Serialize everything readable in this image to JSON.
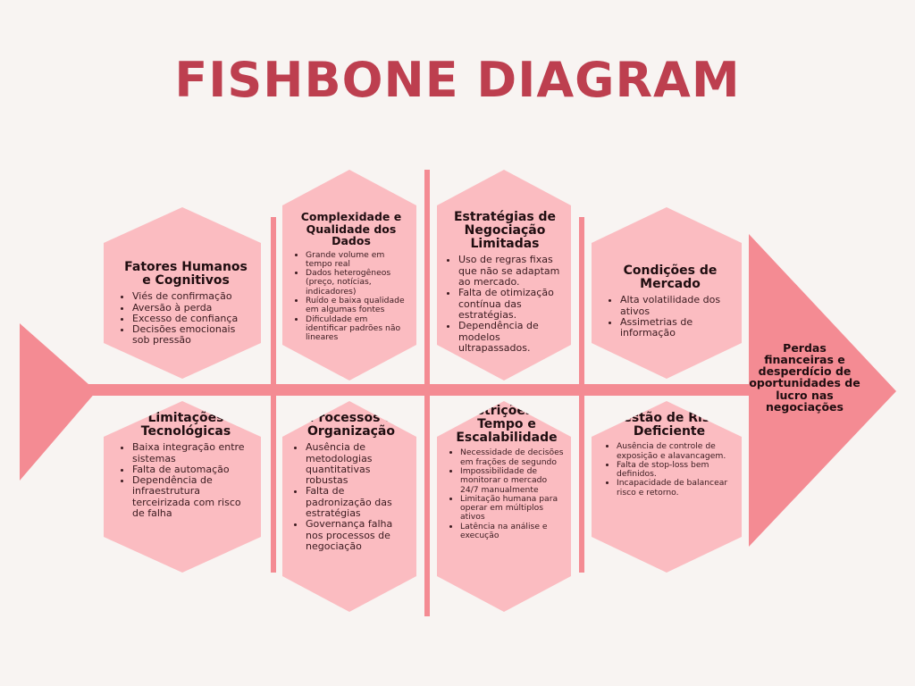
{
  "title": "FISHBONE DIAGRAM",
  "colors": {
    "title": "#bd3f4f",
    "bone": "#f48b93",
    "box": "#fbbcc1",
    "head": "#f48b93",
    "background": "#f8f4f2"
  },
  "effect": "Perdas financeiras e desperdício de oportunidades de lucro nas negociações",
  "top": [
    {
      "title": "Fatores Humanos e Cognitivos",
      "items": [
        "Viés de confirmação",
        "Aversão à perda",
        "Excesso de confiança",
        "Decisões emocionais sob pressão"
      ]
    },
    {
      "title": "Complexidade e Qualidade dos Dados",
      "items": [
        "Grande volume em tempo real",
        "Dados heterogêneos (preço, notícias, indicadores)",
        "Ruído e baixa qualidade em algumas fontes",
        "Dificuldade em identificar padrões não lineares"
      ]
    },
    {
      "title": "Estratégias de Negociação Limitadas",
      "items": [
        "Uso de regras fixas que não se adaptam ao mercado.",
        "Falta de otimização contínua das estratégias.",
        "Dependência de modelos ultrapassados."
      ]
    },
    {
      "title": "Condições de Mercado",
      "items": [
        "Alta volatilidade dos ativos",
        "Assimetrias de informação"
      ]
    }
  ],
  "bottom": [
    {
      "title": "Limitações Tecnológicas",
      "items": [
        "Baixa integração entre sistemas",
        "Falta de automação",
        "Dependência de infraestrutura terceirizada com risco de falha"
      ]
    },
    {
      "title": "Processos e Organização",
      "items": [
        "Ausência de metodologias quantitativas robustas",
        "Falta de padronização das estratégias",
        "Governança falha nos processos de negociação"
      ]
    },
    {
      "title": "Restrições de Tempo e Escalabilidade",
      "items": [
        "Necessidade de decisões em frações de segundo",
        "Impossibilidade de monitorar o mercado 24/7 manualmente",
        "Limitação humana para operar em múltiplos ativos",
        "Latência na análise e execução"
      ]
    },
    {
      "title": "Gestão de Risco Deficiente",
      "items": [
        "Ausência de controle de exposição e alavancagem.",
        "Falta de stop-loss bem definidos.",
        "Incapacidade de balancear risco e retorno."
      ]
    }
  ]
}
